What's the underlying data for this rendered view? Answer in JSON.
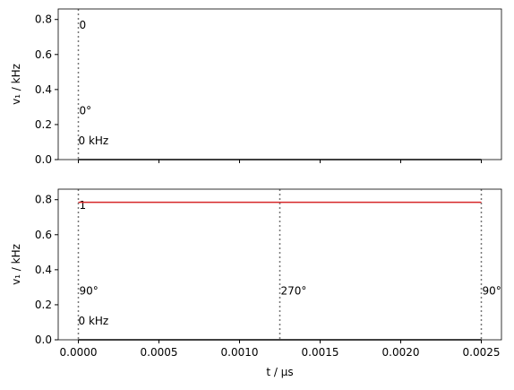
{
  "chart_data": [
    {
      "type": "line",
      "x": [
        0,
        0.0025
      ],
      "series": [
        {
          "color": "#000000",
          "values": [
            0,
            0
          ]
        }
      ],
      "markers": [
        {
          "x": 0,
          "label": "0",
          "phase": "0°"
        }
      ],
      "annotation": "0 kHz",
      "ylabel": "v₁ / kHz",
      "xlim": [
        -0.000125,
        0.002625
      ],
      "ylim": [
        0,
        0.86
      ],
      "xticks": [
        0,
        0.0005,
        0.001,
        0.0015,
        0.002,
        0.0025
      ],
      "show_xticklabels": false,
      "yticks": [
        {
          "value": 0,
          "label": "0.0"
        },
        {
          "value": 0.2,
          "label": "0.2"
        },
        {
          "value": 0.4,
          "label": "0.4"
        },
        {
          "value": 0.6,
          "label": "0.6"
        },
        {
          "value": 0.8,
          "label": "0.8"
        }
      ]
    },
    {
      "type": "line",
      "x": [
        0,
        0.0025
      ],
      "series": [
        {
          "color": "#d62728",
          "values": [
            0.785,
            0.785
          ]
        },
        {
          "color": "#000000",
          "values": [
            0,
            0
          ]
        }
      ],
      "markers": [
        {
          "x": 0,
          "label": "1",
          "phase": "90°"
        },
        {
          "x": 0.00125,
          "phase": "270°"
        },
        {
          "x": 0.0025,
          "phase": "90°"
        }
      ],
      "annotation": "0 kHz",
      "ylabel": "v₁ / kHz",
      "xlabel": "t / μs",
      "xlim": [
        -0.000125,
        0.002625
      ],
      "ylim": [
        0,
        0.86
      ],
      "xticks": [
        {
          "value": 0,
          "label": "0.0000"
        },
        {
          "value": 0.0005,
          "label": "0.0005"
        },
        {
          "value": 0.001,
          "label": "0.0010"
        },
        {
          "value": 0.0015,
          "label": "0.0015"
        },
        {
          "value": 0.002,
          "label": "0.0020"
        },
        {
          "value": 0.0025,
          "label": "0.0025"
        }
      ],
      "show_xticklabels": true,
      "yticks": [
        {
          "value": 0,
          "label": "0.0"
        },
        {
          "value": 0.2,
          "label": "0.2"
        },
        {
          "value": 0.4,
          "label": "0.4"
        },
        {
          "value": 0.6,
          "label": "0.6"
        },
        {
          "value": 0.8,
          "label": "0.8"
        }
      ]
    }
  ]
}
